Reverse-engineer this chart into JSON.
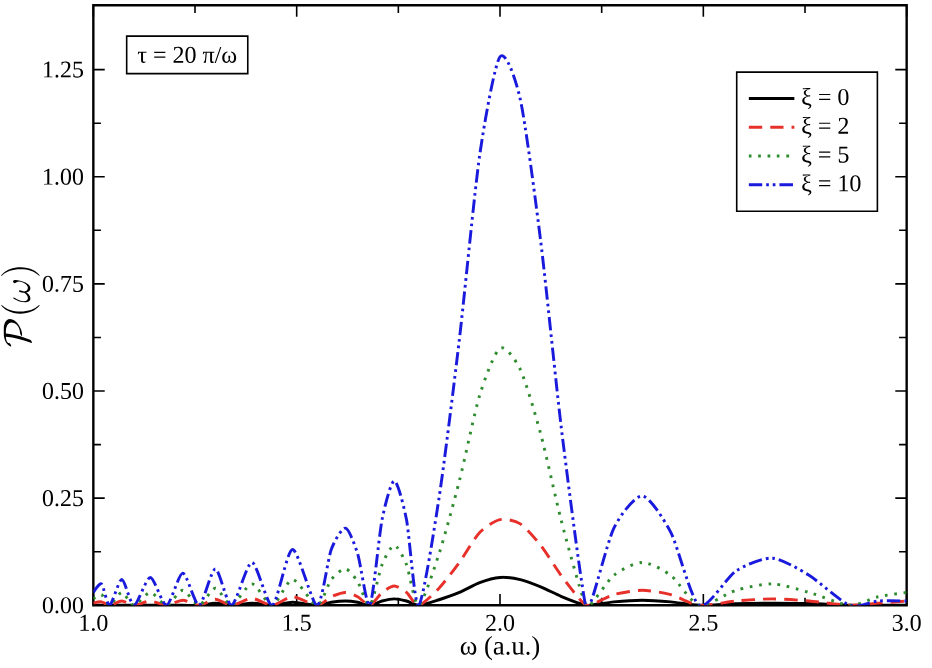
{
  "chart_data": {
    "type": "line",
    "xlabel": "ω (a.u.)",
    "ylabel": "\\mathcal{P}(\\omega)",
    "annotations": [
      "τ = 20 π/ω"
    ],
    "x": [
      1.0,
      1.02,
      1.04,
      1.07,
      1.1,
      1.14,
      1.18,
      1.22,
      1.26,
      1.3,
      1.34,
      1.39,
      1.44,
      1.49,
      1.55,
      1.585,
      1.62,
      1.65,
      1.68,
      1.71,
      1.74,
      1.77,
      1.8,
      1.85,
      1.9,
      1.95,
      2.0,
      2.05,
      2.1,
      2.15,
      2.2,
      2.22,
      2.28,
      2.35,
      2.42,
      2.49,
      2.58,
      2.67,
      2.76,
      2.86,
      2.93,
      3.0
    ],
    "series": [
      {
        "name": "ξ = 0",
        "color": "#000000",
        "line_style": "solid",
        "values": [
          0,
          0,
          0,
          0,
          0,
          0,
          0,
          0,
          0,
          0.005,
          0,
          0.005,
          0,
          0.007,
          0,
          0.007,
          0.01,
          0.007,
          0,
          0.01,
          0.015,
          0.01,
          0,
          0.013,
          0.03,
          0.053,
          0.065,
          0.06,
          0.043,
          0.021,
          0.003,
          0,
          0.008,
          0.012,
          0.008,
          0,
          0.004,
          0.005,
          0.004,
          0,
          0,
          0
        ]
      },
      {
        "name": "ξ = 2",
        "color": "#e8302a",
        "line_style": "dashed",
        "values": [
          0.005,
          0.008,
          0,
          0.01,
          0,
          0.01,
          0,
          0.012,
          0,
          0.014,
          0,
          0.016,
          0,
          0.02,
          0,
          0.02,
          0.03,
          0.02,
          0,
          0.03,
          0.045,
          0.03,
          0,
          0.04,
          0.1,
          0.17,
          0.2,
          0.19,
          0.14,
          0.07,
          0.01,
          0,
          0.025,
          0.035,
          0.025,
          0,
          0.01,
          0.015,
          0.01,
          0,
          0.005,
          0.01
        ]
      },
      {
        "name": "ξ = 5",
        "color": "#2e8b2e",
        "line_style": "dotted",
        "values": [
          0.015,
          0.025,
          0,
          0.03,
          0,
          0.03,
          0,
          0.035,
          0,
          0.04,
          0,
          0.05,
          0,
          0.06,
          0,
          0.06,
          0.085,
          0.055,
          0,
          0.095,
          0.14,
          0.095,
          0,
          0.12,
          0.29,
          0.49,
          0.6,
          0.55,
          0.4,
          0.2,
          0.03,
          0,
          0.07,
          0.1,
          0.07,
          0,
          0.035,
          0.05,
          0.03,
          0,
          0.02,
          0.03
        ]
      },
      {
        "name": "ξ = 10",
        "color": "#1a1adc",
        "line_style": "dashdotdotted",
        "values": [
          0.03,
          0.05,
          0,
          0.06,
          0,
          0.065,
          0,
          0.075,
          0,
          0.085,
          0,
          0.1,
          0,
          0.13,
          0,
          0.13,
          0.18,
          0.12,
          0,
          0.2,
          0.29,
          0.2,
          0,
          0.25,
          0.62,
          1.05,
          1.28,
          1.18,
          0.85,
          0.42,
          0.06,
          0,
          0.18,
          0.255,
          0.17,
          0,
          0.08,
          0.11,
          0.07,
          0,
          0.01,
          0.01
        ]
      }
    ],
    "xlim": [
      1.0,
      3.0
    ],
    "ylim": [
      0,
      1.4
    ],
    "xticks": [
      {
        "value": 1,
        "label": "1.0"
      },
      1.5,
      {
        "value": 2,
        "label": "2.0"
      },
      2.5,
      {
        "value": 3,
        "label": "3.0"
      }
    ],
    "yticks": [
      {
        "value": 0,
        "label": "0.00"
      },
      0.25,
      {
        "value": 0.5,
        "label": "0.50"
      },
      0.75,
      {
        "value": 1,
        "label": "1.00"
      },
      1.25
    ],
    "grid": false,
    "legend": "top right"
  }
}
